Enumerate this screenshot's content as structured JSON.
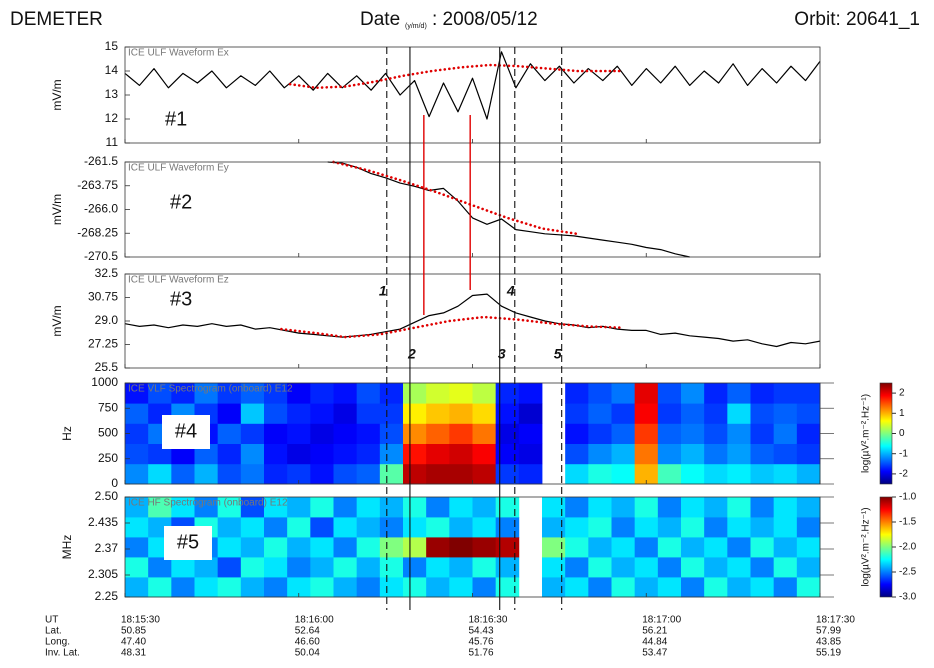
{
  "header": {
    "mission": "DEMETER",
    "date_label": "Date",
    "date_format": "(y/m/d)",
    "date_value": ": 2008/05/12",
    "orbit": "Orbit: 20641_1"
  },
  "time_axis": {
    "xlim": [
      65730,
      65850
    ],
    "xticks": [
      {
        "value": 65730,
        "label": "18:15:30"
      },
      {
        "value": 65760,
        "label": "18:16:00"
      },
      {
        "value": 65790,
        "label": "18:16:30"
      },
      {
        "value": 65820,
        "label": "18:17:00"
      },
      {
        "value": 65850,
        "label": "18:17:30"
      }
    ],
    "rows": [
      "UT",
      "Lat.",
      "Long.",
      "Inv. Lat."
    ],
    "coords": [
      [
        "50.85",
        "47.40",
        "48.31"
      ],
      [
        "52.64",
        "46.60",
        "50.04"
      ],
      [
        "54.43",
        "45.76",
        "51.76"
      ],
      [
        "56.21",
        "44.84",
        "53.47"
      ],
      [
        "57.99",
        "43.85",
        "55.19"
      ]
    ],
    "x": [
      65730,
      65732.5,
      65735,
      65737.5,
      65740,
      65742.5,
      65745,
      65747.5,
      65750,
      65752.5,
      65755,
      65757.5,
      65760,
      65762.5,
      65765,
      65767.5,
      65770,
      65772.5,
      65775,
      65777.5,
      65780,
      65782.5,
      65785,
      65787.5,
      65790,
      65792.5,
      65795,
      65797.5,
      65800,
      65802.5,
      65805,
      65807.5,
      65810,
      65812.5,
      65815,
      65817.5,
      65820,
      65822.5,
      65825,
      65827.5,
      65830,
      65832.5,
      65835,
      65837.5,
      65840,
      65842.5,
      65845,
      65847.5,
      65850
    ]
  },
  "events": [
    {
      "time": 65775.2,
      "label": "1",
      "style": "dashed"
    },
    {
      "time": 65779.2,
      "label": "2",
      "style": "solid"
    },
    {
      "time": 65794.7,
      "label": "3",
      "style": "solid"
    },
    {
      "time": 65797.3,
      "label": "4",
      "style": "dashed"
    },
    {
      "time": 65805.4,
      "label": "5",
      "style": "dashed"
    }
  ],
  "connectors": [
    {
      "time": 65781.6,
      "color": "#e00000"
    },
    {
      "time": 65789.6,
      "color": "#e00000"
    }
  ],
  "chart_data": [
    {
      "type": "line",
      "title": "ICE ULF Waveform Ex",
      "label": "#1",
      "ylabel": "mV/m",
      "ylim": [
        11,
        15
      ],
      "yticks": [
        11,
        12,
        13,
        14,
        15
      ],
      "series": [
        {
          "color": "#000000",
          "style": "solid",
          "values": [
            13.9,
            13.4,
            14.1,
            13.3,
            13.9,
            13.5,
            14.0,
            13.3,
            13.8,
            13.4,
            14.0,
            13.3,
            13.8,
            13.2,
            13.9,
            13.3,
            13.8,
            13.2,
            13.9,
            13.0,
            13.6,
            12.1,
            13.5,
            12.3,
            13.7,
            12.0,
            14.8,
            13.3,
            14.3,
            13.6,
            14.2,
            13.5,
            14.1,
            13.6,
            14.2,
            13.4,
            14.1,
            13.5,
            14.2,
            13.4,
            14.0,
            13.5,
            14.3,
            13.4,
            14.1,
            13.5,
            14.2,
            13.6,
            14.4
          ]
        },
        {
          "color": "#e00000",
          "style": "dotted",
          "x": [
            65758.5,
            65763,
            65768,
            65773,
            65778,
            65783,
            65788,
            65793,
            65798,
            65803,
            65808,
            65816
          ],
          "values": [
            13.45,
            13.3,
            13.35,
            13.55,
            13.8,
            14.0,
            14.15,
            14.25,
            14.2,
            14.1,
            14.0,
            14.0
          ]
        }
      ]
    },
    {
      "type": "line",
      "title": "ICE ULF Waveform Ey",
      "label": "#2",
      "ylabel": "mV/m",
      "ylim": [
        -270.5,
        -261.5
      ],
      "yticks": [
        -270.5,
        -268.25,
        {
          "value": -266,
          "label": "-266.0"
        },
        -263.75,
        -261.5
      ],
      "series": [
        {
          "color": "#000000",
          "style": "solid",
          "values": [
            null,
            null,
            null,
            null,
            null,
            null,
            null,
            null,
            null,
            null,
            null,
            null,
            null,
            null,
            -261.5,
            -261.6,
            -262.0,
            -262.6,
            -263.0,
            -263.5,
            -263.8,
            -264.2,
            -264.0,
            -265.2,
            -266.8,
            -267.4,
            -266.9,
            -267.9,
            -268.1,
            -268.3,
            -268.4,
            -268.5,
            -268.7,
            -268.9,
            -269.1,
            -269.3,
            -269.6,
            -269.8,
            -270.2,
            -270.5,
            null,
            null,
            null,
            null,
            null,
            null,
            null,
            null,
            null
          ]
        },
        {
          "color": "#e00000",
          "style": "dotted",
          "x": [
            65766,
            65772,
            65778,
            65784,
            65790,
            65796,
            65802,
            65808
          ],
          "values": [
            -261.5,
            -262.3,
            -263.3,
            -264.4,
            -265.6,
            -266.8,
            -267.8,
            -268.3
          ]
        }
      ]
    },
    {
      "type": "line",
      "title": "ICE ULF Waveform Ez",
      "label": "#3",
      "ylabel": "mV/m",
      "ylim": [
        25.5,
        32.5
      ],
      "yticks": [
        25.5,
        27.25,
        {
          "value": 29,
          "label": "29.0"
        },
        30.75,
        32.5
      ],
      "series": [
        {
          "color": "#000000",
          "style": "solid",
          "values": [
            28.8,
            28.6,
            28.7,
            28.5,
            28.7,
            28.6,
            28.8,
            28.6,
            28.7,
            28.4,
            28.5,
            28.3,
            28.1,
            28.0,
            27.9,
            27.8,
            27.9,
            28.0,
            28.2,
            28.4,
            28.9,
            29.4,
            29.6,
            30.1,
            30.9,
            31.0,
            30.1,
            29.6,
            29.3,
            29.0,
            28.8,
            28.7,
            28.5,
            28.6,
            28.4,
            28.3,
            28.3,
            28.0,
            28.1,
            27.9,
            27.8,
            27.7,
            27.5,
            27.6,
            27.3,
            27.1,
            27.4,
            27.3,
            27.5
          ]
        },
        {
          "color": "#e00000",
          "style": "dotted",
          "x": [
            65757,
            65763,
            65768,
            65774,
            65780,
            65786,
            65792,
            65798,
            65804,
            65810,
            65816
          ],
          "values": [
            28.4,
            28.1,
            27.8,
            28.0,
            28.5,
            29.0,
            29.3,
            29.1,
            28.8,
            28.6,
            28.5
          ]
        }
      ]
    },
    {
      "type": "heatmap",
      "title": "ICE VLF Spectrogram (onboard) E12",
      "label": "#4",
      "ylabel": "Hz",
      "ylim": [
        0,
        1000
      ],
      "yticks": [
        0,
        250,
        500,
        750,
        1000
      ],
      "colormap": "jet",
      "zlim": [
        -2.5,
        2.5
      ],
      "colorbar_ticks": [
        -2,
        -1,
        0,
        1,
        2
      ],
      "colorbar_label": "log(µV².m⁻².Hz⁻¹)",
      "xbins": [
        65730,
        65734,
        65738,
        65742,
        65746,
        65750,
        65754,
        65758,
        65762,
        65766,
        65770,
        65774,
        65778,
        65782,
        65786,
        65790,
        65794,
        65798,
        65802,
        65806,
        65810,
        65814,
        65818,
        65822,
        65826,
        65830,
        65834,
        65838,
        65842,
        65846,
        65850
      ],
      "ybins": [
        0,
        200,
        400,
        600,
        800,
        1000
      ],
      "z": [
        [
          -1.2,
          -1.5,
          -1.6,
          -1.4,
          -1.8
        ],
        [
          -0.8,
          -1.6,
          -1.3,
          -1.7,
          -1.5
        ],
        [
          -1.4,
          -1.9,
          -1.5,
          -1.2,
          -1.7
        ],
        [
          -1.0,
          -1.4,
          -1.8,
          -1.6,
          -1.3
        ],
        [
          -1.5,
          -1.7,
          -1.4,
          -1.9,
          -1.6
        ],
        [
          -1.3,
          -1.2,
          -1.6,
          -0.9,
          -1.4
        ],
        [
          -1.7,
          -1.8,
          -1.9,
          -1.5,
          -1.6
        ],
        [
          -1.6,
          -2.0,
          -1.8,
          -1.7,
          -1.9
        ],
        [
          -1.8,
          -1.9,
          -2.0,
          -1.8,
          -1.7
        ],
        [
          -1.5,
          -1.8,
          -1.9,
          -2.0,
          -1.8
        ],
        [
          -1.4,
          -1.7,
          -1.8,
          -1.6,
          -1.5
        ],
        [
          -0.2,
          -1.2,
          -1.5,
          -1.6,
          -1.7
        ],
        [
          2.2,
          1.8,
          1.2,
          0.7,
          0.2
        ],
        [
          2.3,
          2.0,
          1.4,
          0.9,
          0.4
        ],
        [
          2.3,
          2.1,
          1.6,
          1.0,
          0.5
        ],
        [
          2.2,
          1.9,
          1.3,
          0.8,
          0.3
        ],
        [
          -1.6,
          -1.9,
          -2.0,
          -1.8,
          -1.7
        ],
        [
          -1.7,
          -2.0,
          -1.9,
          -2.1,
          -1.8
        ],
        [
          null,
          null,
          null,
          null,
          null
        ],
        [
          -0.8,
          -1.5,
          -1.8,
          -1.6,
          -1.7
        ],
        [
          -0.5,
          -1.2,
          -1.6,
          -1.4,
          -1.5
        ],
        [
          -0.6,
          -1.0,
          -1.4,
          -1.6,
          -1.3
        ],
        [
          1.0,
          1.3,
          1.6,
          1.9,
          2.0
        ],
        [
          -0.3,
          -1.2,
          -1.4,
          -1.6,
          -1.5
        ],
        [
          -0.6,
          -1.0,
          -1.3,
          -1.4,
          -1.2
        ],
        [
          -0.8,
          -1.3,
          -1.5,
          -1.6,
          -1.7
        ],
        [
          -0.7,
          -1.1,
          -1.2,
          -0.8,
          -1.4
        ],
        [
          -0.9,
          -1.4,
          -1.6,
          -1.5,
          -1.7
        ],
        [
          -0.8,
          -1.5,
          -1.3,
          -1.4,
          -1.6
        ],
        [
          -1.0,
          -1.6,
          -1.7,
          -1.5,
          -1.6
        ]
      ]
    },
    {
      "type": "heatmap",
      "title": "ICE HF Spectrogram (onboard) E12",
      "label": "#5",
      "ylabel": "MHz",
      "ylim": [
        2.25,
        2.5
      ],
      "yticks": [
        2.25,
        2.305,
        2.37,
        2.435,
        {
          "value": 2.5,
          "label": "2.50"
        }
      ],
      "colormap": "jet",
      "zlim": [
        -3,
        -1
      ],
      "colorbar_ticks": [
        {
          "value": -3,
          "label": "-3.0"
        },
        -2.5,
        {
          "value": -2,
          "label": "-2.0"
        },
        -1.5,
        {
          "value": -1,
          "label": "-1.0"
        }
      ],
      "colorbar_label": "log(µV².m⁻².Hz⁻¹)",
      "xbins": [
        65730,
        65734,
        65738,
        65742,
        65746,
        65750,
        65754,
        65758,
        65762,
        65766,
        65770,
        65774,
        65778,
        65782,
        65786,
        65790,
        65794,
        65798,
        65802,
        65806,
        65810,
        65814,
        65818,
        65822,
        65826,
        65830,
        65834,
        65838,
        65842,
        65846,
        65850
      ],
      "ybins": [
        2.25,
        2.3,
        2.35,
        2.4,
        2.45,
        2.5
      ],
      "z": [
        [
          -2.4,
          -2.2,
          -2.5,
          -2.3,
          -2.4
        ],
        [
          -2.2,
          -2.5,
          -2.3,
          -2.4,
          -2.1
        ],
        [
          -2.5,
          -2.3,
          -2.2,
          -2.6,
          -2.3
        ],
        [
          -2.3,
          -2.4,
          -2.5,
          -2.2,
          -2.5
        ],
        [
          -2.2,
          -2.6,
          -2.3,
          -2.4,
          -2.2
        ],
        [
          -2.4,
          -2.2,
          -2.4,
          -2.3,
          -2.6
        ],
        [
          -2.5,
          -2.3,
          -2.2,
          -2.5,
          -2.3
        ],
        [
          -2.3,
          -2.5,
          -2.4,
          -2.2,
          -2.4
        ],
        [
          -2.2,
          -2.4,
          -2.3,
          -2.6,
          -2.2
        ],
        [
          -2.4,
          -2.2,
          -2.5,
          -2.3,
          -2.5
        ],
        [
          -2.5,
          -2.4,
          -2.2,
          -2.4,
          -2.3
        ],
        [
          -2.3,
          -2.2,
          -2.0,
          -2.5,
          -2.4
        ],
        [
          -2.2,
          -2.5,
          -1.9,
          -2.3,
          -2.2
        ],
        [
          -2.4,
          -2.3,
          -1.05,
          -2.2,
          -2.5
        ],
        [
          -2.3,
          -2.4,
          -1.0,
          -2.4,
          -2.3
        ],
        [
          -2.5,
          -2.2,
          -1.05,
          -2.3,
          -2.4
        ],
        [
          -2.2,
          -2.4,
          -1.1,
          -2.5,
          -2.2
        ],
        [
          null,
          null,
          null,
          null,
          null
        ],
        [
          -2.4,
          -2.3,
          -2.0,
          -2.4,
          -2.3
        ],
        [
          -2.3,
          -2.5,
          -2.2,
          -2.3,
          -2.5
        ],
        [
          -2.5,
          -2.2,
          -2.4,
          -2.2,
          -2.3
        ],
        [
          -2.2,
          -2.4,
          -2.3,
          -2.5,
          -2.4
        ],
        [
          -2.4,
          -2.3,
          -2.5,
          -2.3,
          -2.2
        ],
        [
          -2.3,
          -2.5,
          -2.2,
          -2.4,
          -2.5
        ],
        [
          -2.5,
          -2.2,
          -2.4,
          -2.2,
          -2.3
        ],
        [
          -2.2,
          -2.4,
          -2.3,
          -2.5,
          -2.4
        ],
        [
          -2.4,
          -2.3,
          -2.5,
          -2.3,
          -2.2
        ],
        [
          -2.3,
          -2.5,
          -2.2,
          -2.4,
          -2.5
        ],
        [
          -2.5,
          -2.2,
          -2.4,
          -2.3,
          -2.3
        ],
        [
          -2.2,
          -2.4,
          -2.3,
          -2.5,
          -2.4
        ]
      ]
    }
  ]
}
